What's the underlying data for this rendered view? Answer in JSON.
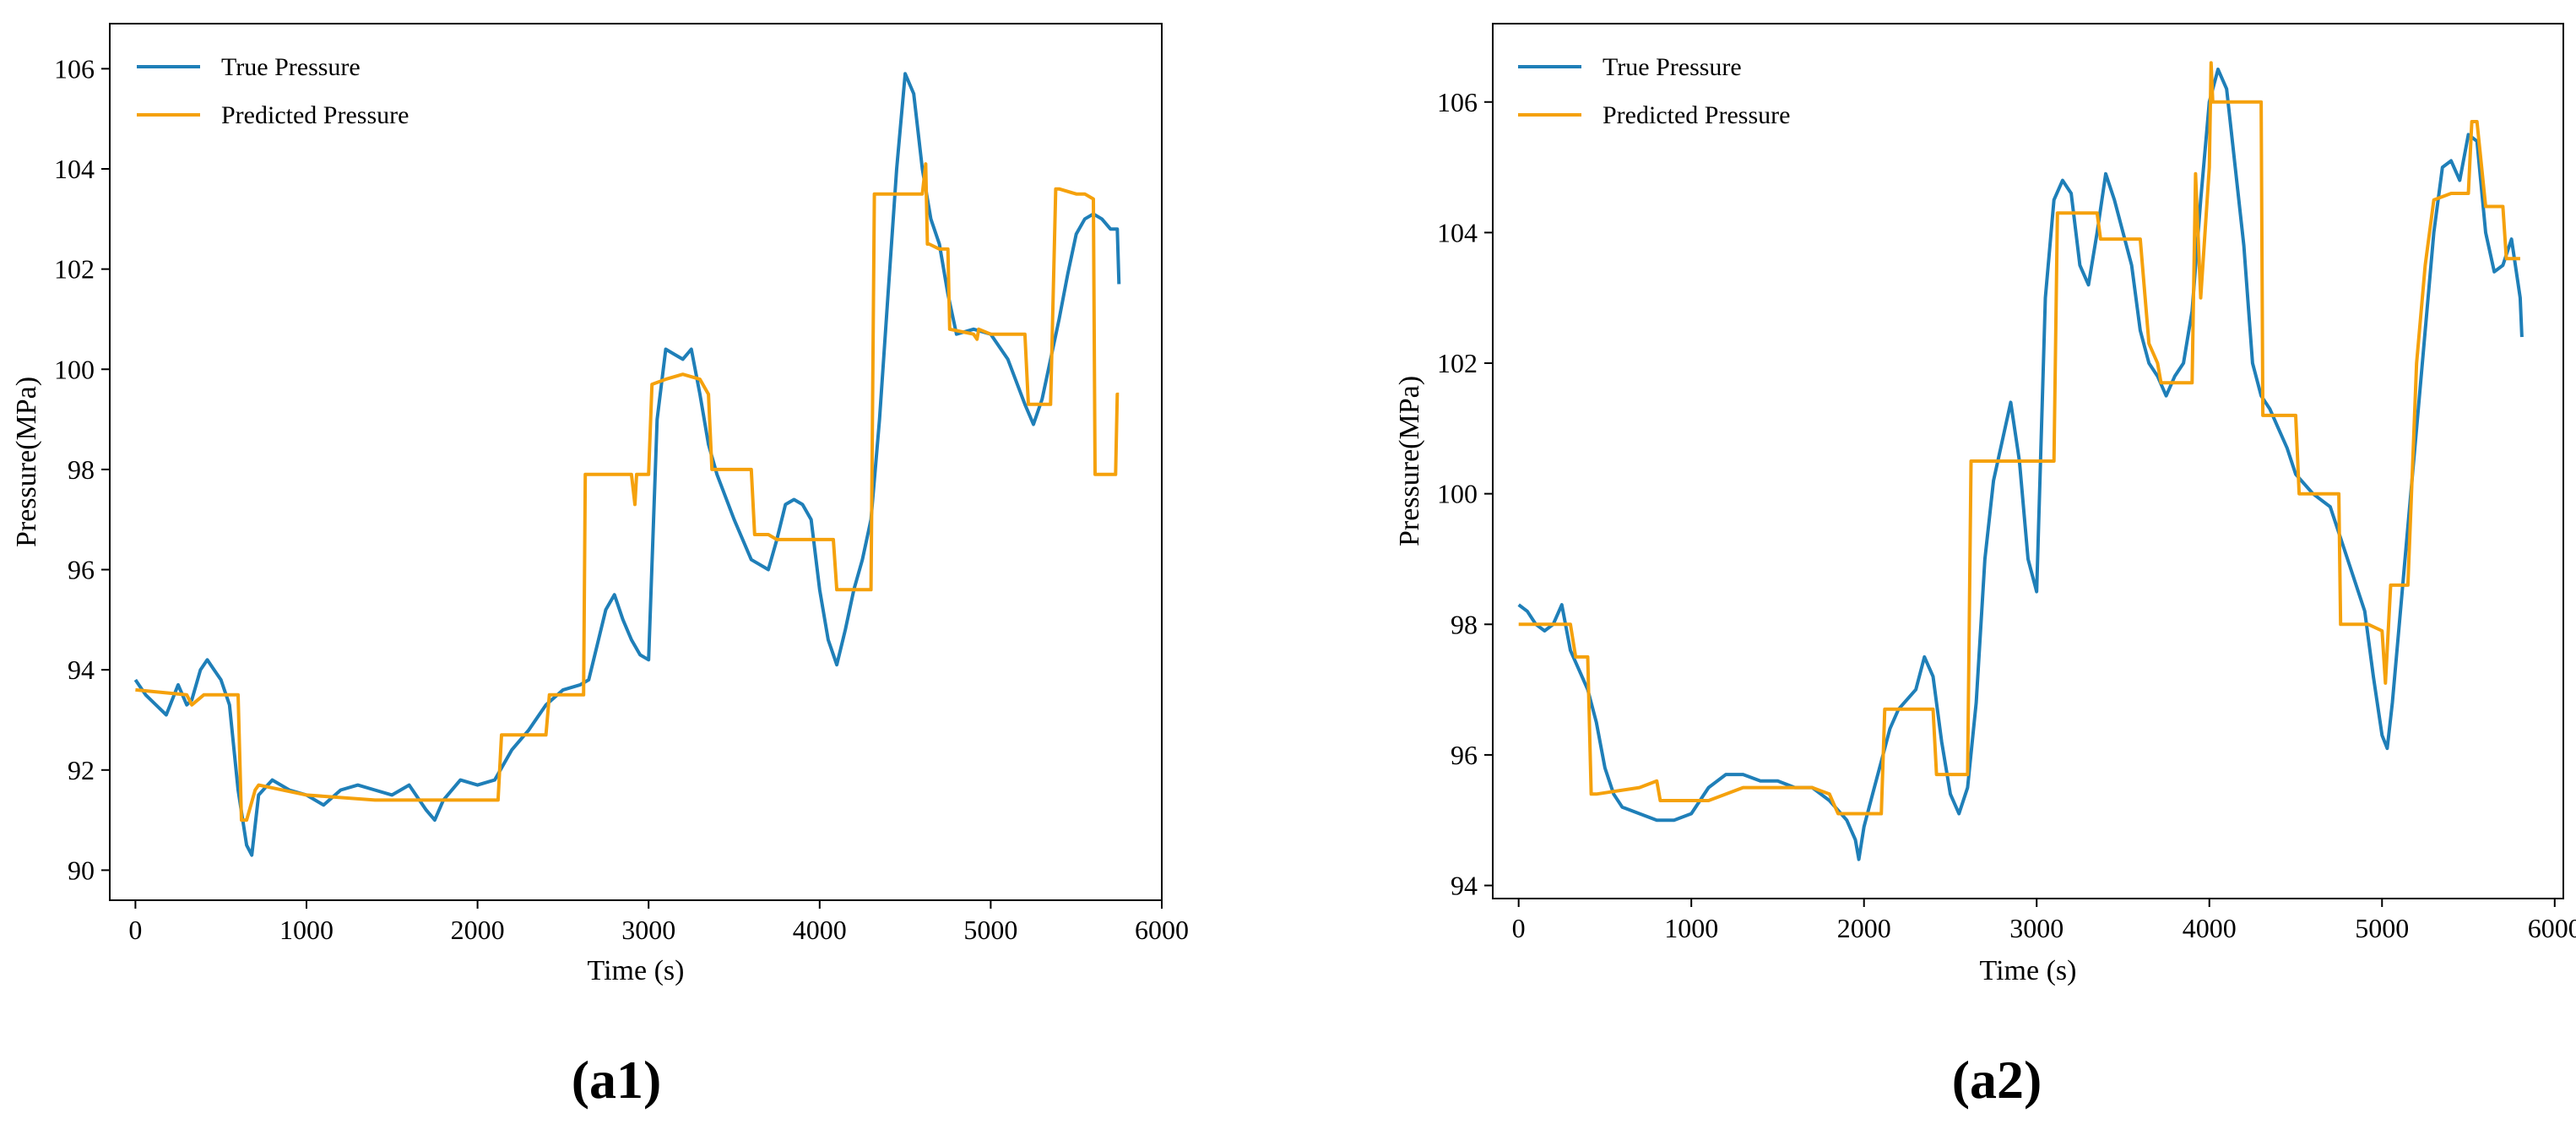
{
  "figure": {
    "panels": [
      "(a1)",
      "(a2)"
    ]
  },
  "colors": {
    "true_series": "#1f7fb8",
    "pred_series": "#f5a10c",
    "axes": "#000000",
    "background": "#ffffff"
  },
  "chart_data": [
    {
      "type": "line",
      "panel_label": "(a1)",
      "title": "",
      "xlabel": "Time (s)",
      "ylabel": "Pressure(MPa)",
      "xlim": [
        -150,
        6000
      ],
      "ylim": [
        89.4,
        106.9
      ],
      "xticks": [
        0,
        1000,
        2000,
        3000,
        4000,
        5000,
        6000
      ],
      "yticks": [
        90,
        92,
        94,
        96,
        98,
        100,
        102,
        104,
        106
      ],
      "grid": false,
      "legend": "top-left",
      "series": [
        {
          "name": "True Pressure",
          "color": "#1f7fb8",
          "x": [
            0,
            60,
            120,
            180,
            250,
            300,
            330,
            380,
            420,
            460,
            500,
            550,
            600,
            650,
            680,
            720,
            800,
            900,
            1000,
            1100,
            1200,
            1300,
            1400,
            1500,
            1600,
            1700,
            1750,
            1800,
            1900,
            2000,
            2100,
            2200,
            2300,
            2400,
            2500,
            2600,
            2650,
            2700,
            2750,
            2800,
            2850,
            2900,
            2950,
            3000,
            3050,
            3100,
            3150,
            3200,
            3250,
            3300,
            3350,
            3400,
            3500,
            3600,
            3700,
            3750,
            3800,
            3850,
            3900,
            3950,
            4000,
            4050,
            4100,
            4150,
            4200,
            4250,
            4300,
            4350,
            4400,
            4450,
            4500,
            4550,
            4600,
            4650,
            4700,
            4750,
            4800,
            4900,
            5000,
            5100,
            5200,
            5250,
            5300,
            5350,
            5400,
            5450,
            5500,
            5550,
            5600,
            5650,
            5700,
            5740,
            5750
          ],
          "values": [
            93.8,
            93.5,
            93.3,
            93.1,
            93.7,
            93.3,
            93.4,
            94.0,
            94.2,
            94.0,
            93.8,
            93.3,
            91.6,
            90.5,
            90.3,
            91.5,
            91.8,
            91.6,
            91.5,
            91.3,
            91.6,
            91.7,
            91.6,
            91.5,
            91.7,
            91.2,
            91.0,
            91.4,
            91.8,
            91.7,
            91.8,
            92.4,
            92.8,
            93.3,
            93.6,
            93.7,
            93.8,
            94.5,
            95.2,
            95.5,
            95.0,
            94.6,
            94.3,
            94.2,
            99.0,
            100.4,
            100.3,
            100.2,
            100.4,
            99.5,
            98.5,
            97.9,
            97.0,
            96.2,
            96.0,
            96.6,
            97.3,
            97.4,
            97.3,
            97.0,
            95.6,
            94.6,
            94.1,
            94.8,
            95.6,
            96.2,
            97.0,
            99.0,
            101.5,
            104.0,
            105.9,
            105.5,
            104.0,
            103.0,
            102.5,
            101.5,
            100.7,
            100.8,
            100.7,
            100.2,
            99.3,
            98.9,
            99.4,
            100.2,
            101.0,
            101.9,
            102.7,
            103.0,
            103.1,
            103.0,
            102.8,
            102.8,
            101.7
          ]
        },
        {
          "name": "Predicted Pressure",
          "color": "#f5a10c",
          "x": [
            0,
            300,
            330,
            400,
            600,
            620,
            650,
            700,
            720,
            1000,
            1400,
            2000,
            2120,
            2140,
            2400,
            2420,
            2620,
            2630,
            2900,
            2920,
            2930,
            3000,
            3020,
            3100,
            3200,
            3300,
            3350,
            3370,
            3400,
            3600,
            3620,
            3650,
            3700,
            3750,
            4000,
            4080,
            4100,
            4200,
            4300,
            4320,
            4330,
            4600,
            4620,
            4630,
            4640,
            4700,
            4750,
            4760,
            4900,
            4920,
            4930,
            5000,
            5100,
            5200,
            5220,
            5250,
            5300,
            5350,
            5380,
            5400,
            5500,
            5550,
            5600,
            5610,
            5650,
            5700,
            5730,
            5740,
            5750
          ],
          "values": [
            93.6,
            93.5,
            93.3,
            93.5,
            93.5,
            91.0,
            91.0,
            91.6,
            91.7,
            91.5,
            91.4,
            91.4,
            91.4,
            92.7,
            92.7,
            93.5,
            93.5,
            97.9,
            97.9,
            97.3,
            97.9,
            97.9,
            99.7,
            99.8,
            99.9,
            99.8,
            99.5,
            98.0,
            98.0,
            98.0,
            96.7,
            96.7,
            96.7,
            96.6,
            96.6,
            96.6,
            95.6,
            95.6,
            95.6,
            103.5,
            103.5,
            103.5,
            104.1,
            102.5,
            102.5,
            102.4,
            102.4,
            100.8,
            100.7,
            100.6,
            100.8,
            100.7,
            100.7,
            100.7,
            99.3,
            99.3,
            99.3,
            99.3,
            103.6,
            103.6,
            103.5,
            103.5,
            103.4,
            97.9,
            97.9,
            97.9,
            97.9,
            99.5,
            99.5
          ]
        }
      ]
    },
    {
      "type": "line",
      "panel_label": "(a2)",
      "title": "",
      "xlabel": "Time (s)",
      "ylabel": "Pressure(MPa)",
      "xlim": [
        -150,
        6050
      ],
      "ylim": [
        93.8,
        107.2
      ],
      "xticks": [
        0,
        1000,
        2000,
        3000,
        4000,
        5000,
        6000
      ],
      "yticks": [
        94,
        96,
        98,
        100,
        102,
        104,
        106
      ],
      "grid": false,
      "legend": "top-left",
      "series": [
        {
          "name": "True Pressure",
          "color": "#1f7fb8",
          "x": [
            0,
            50,
            100,
            150,
            200,
            250,
            300,
            350,
            400,
            450,
            500,
            550,
            600,
            700,
            800,
            900,
            1000,
            1100,
            1200,
            1300,
            1400,
            1500,
            1600,
            1700,
            1800,
            1900,
            1950,
            1970,
            2000,
            2050,
            2100,
            2150,
            2200,
            2300,
            2350,
            2400,
            2450,
            2500,
            2550,
            2600,
            2650,
            2700,
            2750,
            2800,
            2850,
            2900,
            2950,
            3000,
            3050,
            3100,
            3150,
            3200,
            3250,
            3300,
            3350,
            3400,
            3450,
            3500,
            3550,
            3600,
            3650,
            3700,
            3750,
            3800,
            3850,
            3900,
            3950,
            4000,
            4050,
            4100,
            4150,
            4200,
            4250,
            4300,
            4350,
            4400,
            4450,
            4500,
            4600,
            4700,
            4800,
            4900,
            4950,
            5000,
            5030,
            5060,
            5100,
            5150,
            5200,
            5250,
            5300,
            5350,
            5400,
            5450,
            5500,
            5550,
            5600,
            5650,
            5700,
            5750,
            5800,
            5810
          ],
          "values": [
            98.3,
            98.2,
            98.0,
            97.9,
            98.0,
            98.3,
            97.6,
            97.3,
            97.0,
            96.5,
            95.8,
            95.4,
            95.2,
            95.1,
            95.0,
            95.0,
            95.1,
            95.5,
            95.7,
            95.7,
            95.6,
            95.6,
            95.5,
            95.5,
            95.3,
            95.0,
            94.7,
            94.4,
            94.9,
            95.4,
            95.9,
            96.4,
            96.7,
            97.0,
            97.5,
            97.2,
            96.2,
            95.4,
            95.1,
            95.5,
            96.8,
            99.0,
            100.2,
            100.8,
            101.4,
            100.5,
            99.0,
            98.5,
            103.0,
            104.5,
            104.8,
            104.6,
            103.5,
            103.2,
            104.0,
            104.9,
            104.5,
            104.0,
            103.5,
            102.5,
            102.0,
            101.8,
            101.5,
            101.8,
            102.0,
            102.8,
            104.5,
            106.0,
            106.5,
            106.2,
            105.0,
            103.8,
            102.0,
            101.5,
            101.3,
            101.0,
            100.7,
            100.3,
            100.0,
            99.8,
            99.0,
            98.2,
            97.2,
            96.3,
            96.1,
            96.8,
            98.0,
            99.5,
            101.0,
            102.5,
            104.0,
            105.0,
            105.1,
            104.8,
            105.5,
            105.4,
            104.0,
            103.4,
            103.5,
            103.9,
            103.0,
            102.4
          ]
        },
        {
          "name": "Predicted Pressure",
          "color": "#f5a10c",
          "x": [
            0,
            300,
            330,
            400,
            420,
            450,
            700,
            800,
            820,
            850,
            1100,
            1300,
            1700,
            1800,
            1850,
            2050,
            2100,
            2120,
            2130,
            2400,
            2420,
            2450,
            2600,
            2620,
            2630,
            3000,
            3100,
            3120,
            3350,
            3370,
            3600,
            3650,
            3700,
            3720,
            3900,
            3920,
            3950,
            4000,
            4010,
            4020,
            4050,
            4100,
            4200,
            4300,
            4310,
            4500,
            4520,
            4600,
            4700,
            4750,
            4760,
            4900,
            4920,
            5000,
            5020,
            5050,
            5150,
            5200,
            5250,
            5300,
            5400,
            5500,
            5520,
            5550,
            5600,
            5700,
            5720,
            5800
          ],
          "values": [
            98.0,
            98.0,
            97.5,
            97.5,
            95.4,
            95.4,
            95.5,
            95.6,
            95.3,
            95.3,
            95.3,
            95.5,
            95.5,
            95.4,
            95.1,
            95.1,
            95.1,
            96.7,
            96.7,
            96.7,
            95.7,
            95.7,
            95.7,
            100.5,
            100.5,
            100.5,
            100.5,
            104.3,
            104.3,
            103.9,
            103.9,
            102.3,
            102.0,
            101.7,
            101.7,
            104.9,
            103.0,
            105.0,
            106.6,
            106.0,
            106.0,
            106.0,
            106.0,
            106.0,
            101.2,
            101.2,
            100.0,
            100.0,
            100.0,
            100.0,
            98.0,
            98.0,
            98.0,
            97.9,
            97.1,
            98.6,
            98.6,
            102.0,
            103.5,
            104.5,
            104.6,
            104.6,
            105.7,
            105.7,
            104.4,
            104.4,
            103.6,
            103.6
          ]
        }
      ]
    }
  ]
}
